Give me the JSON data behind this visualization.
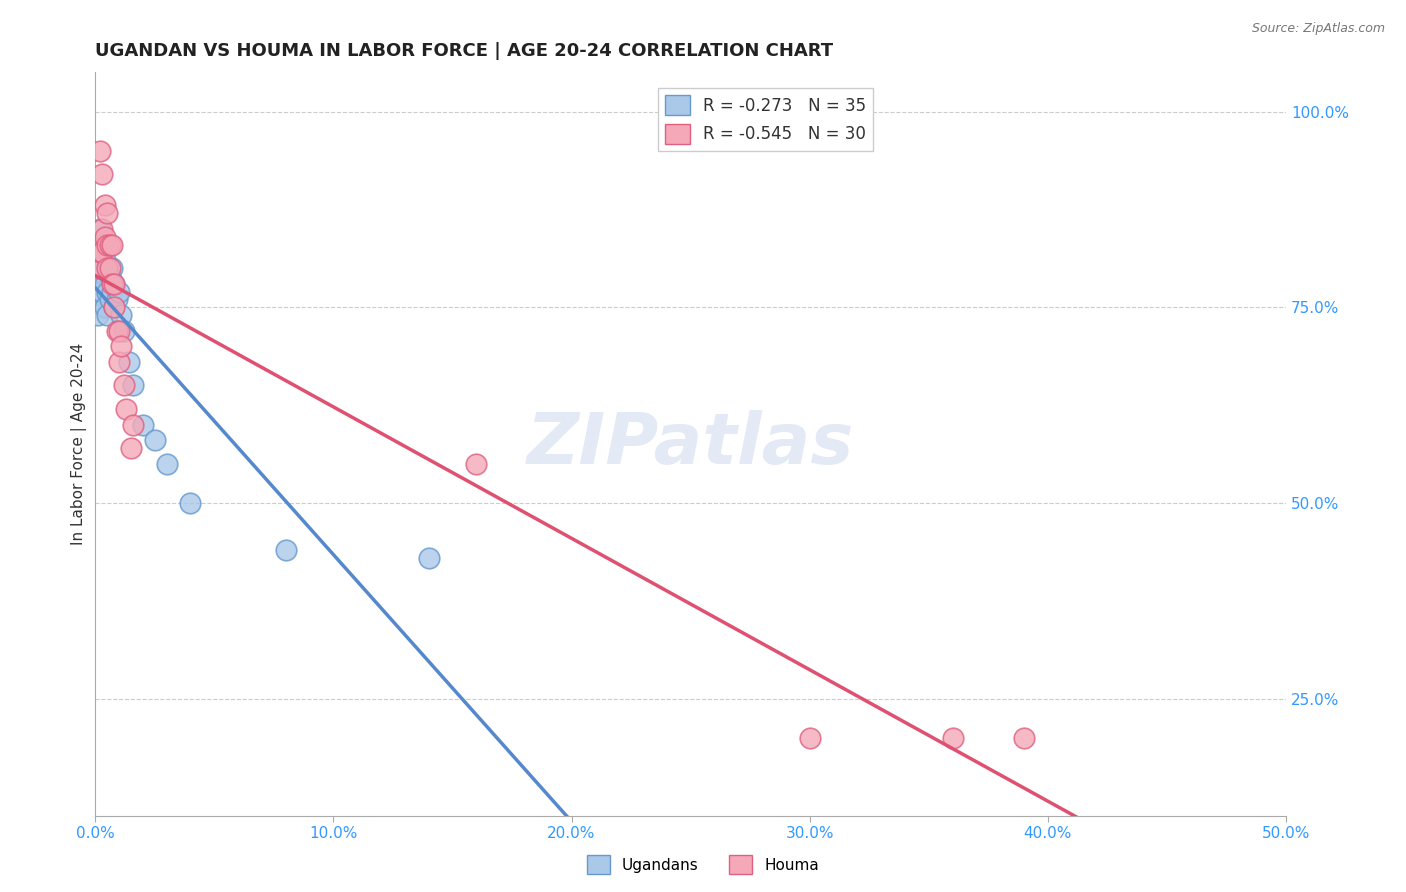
{
  "title": "UGANDAN VS HOUMA IN LABOR FORCE | AGE 20-24 CORRELATION CHART",
  "source": "Source: ZipAtlas.com",
  "ylabel": "In Labor Force | Age 20-24",
  "xlim": [
    0.0,
    0.5
  ],
  "ylim": [
    0.1,
    1.05
  ],
  "x_ticks": [
    0.0,
    0.1,
    0.2,
    0.3,
    0.4,
    0.5
  ],
  "x_tick_labels": [
    "0.0%",
    "10.0%",
    "20.0%",
    "30.0%",
    "40.0%",
    "50.0%"
  ],
  "y_ticks": [
    0.25,
    0.5,
    0.75,
    1.0
  ],
  "y_tick_labels": [
    "25.0%",
    "50.0%",
    "75.0%",
    "100.0%"
  ],
  "ugandan_color": "#aac8e8",
  "houma_color": "#f4a8b8",
  "ugandan_edge": "#6699cc",
  "houma_edge": "#e06080",
  "legend_R_ugandan": "R = -0.273",
  "legend_N_ugandan": "N = 35",
  "legend_R_houma": "R = -0.545",
  "legend_N_houma": "N = 30",
  "ugandan_x": [
    0.001,
    0.001,
    0.001,
    0.001,
    0.002,
    0.002,
    0.002,
    0.002,
    0.003,
    0.003,
    0.003,
    0.004,
    0.004,
    0.004,
    0.005,
    0.005,
    0.005,
    0.006,
    0.006,
    0.007,
    0.007,
    0.008,
    0.008,
    0.009,
    0.01,
    0.011,
    0.012,
    0.014,
    0.016,
    0.02,
    0.025,
    0.03,
    0.04,
    0.08,
    0.14
  ],
  "ugandan_y": [
    0.8,
    0.78,
    0.76,
    0.74,
    0.85,
    0.82,
    0.79,
    0.77,
    0.83,
    0.8,
    0.77,
    0.81,
    0.78,
    0.75,
    0.8,
    0.77,
    0.74,
    0.79,
    0.76,
    0.8,
    0.77,
    0.78,
    0.75,
    0.76,
    0.77,
    0.74,
    0.72,
    0.68,
    0.65,
    0.6,
    0.58,
    0.55,
    0.5,
    0.44,
    0.43
  ],
  "houma_x": [
    0.001,
    0.001,
    0.002,
    0.002,
    0.003,
    0.003,
    0.003,
    0.004,
    0.004,
    0.005,
    0.005,
    0.005,
    0.006,
    0.006,
    0.007,
    0.007,
    0.008,
    0.008,
    0.009,
    0.01,
    0.01,
    0.011,
    0.012,
    0.013,
    0.015,
    0.016,
    0.16,
    0.3,
    0.36,
    0.39
  ],
  "houma_y": [
    0.83,
    0.8,
    0.95,
    0.82,
    0.92,
    0.85,
    0.82,
    0.88,
    0.84,
    0.87,
    0.83,
    0.8,
    0.83,
    0.8,
    0.83,
    0.78,
    0.78,
    0.75,
    0.72,
    0.72,
    0.68,
    0.7,
    0.65,
    0.62,
    0.57,
    0.6,
    0.55,
    0.2,
    0.2,
    0.2
  ],
  "watermark": "ZIPatlas",
  "bg_color": "#ffffff",
  "grid_color": "#cccccc",
  "ugandan_line_color": "#5588cc",
  "houma_line_color": "#e05070",
  "ugandan_dash_color": "#aaccee"
}
